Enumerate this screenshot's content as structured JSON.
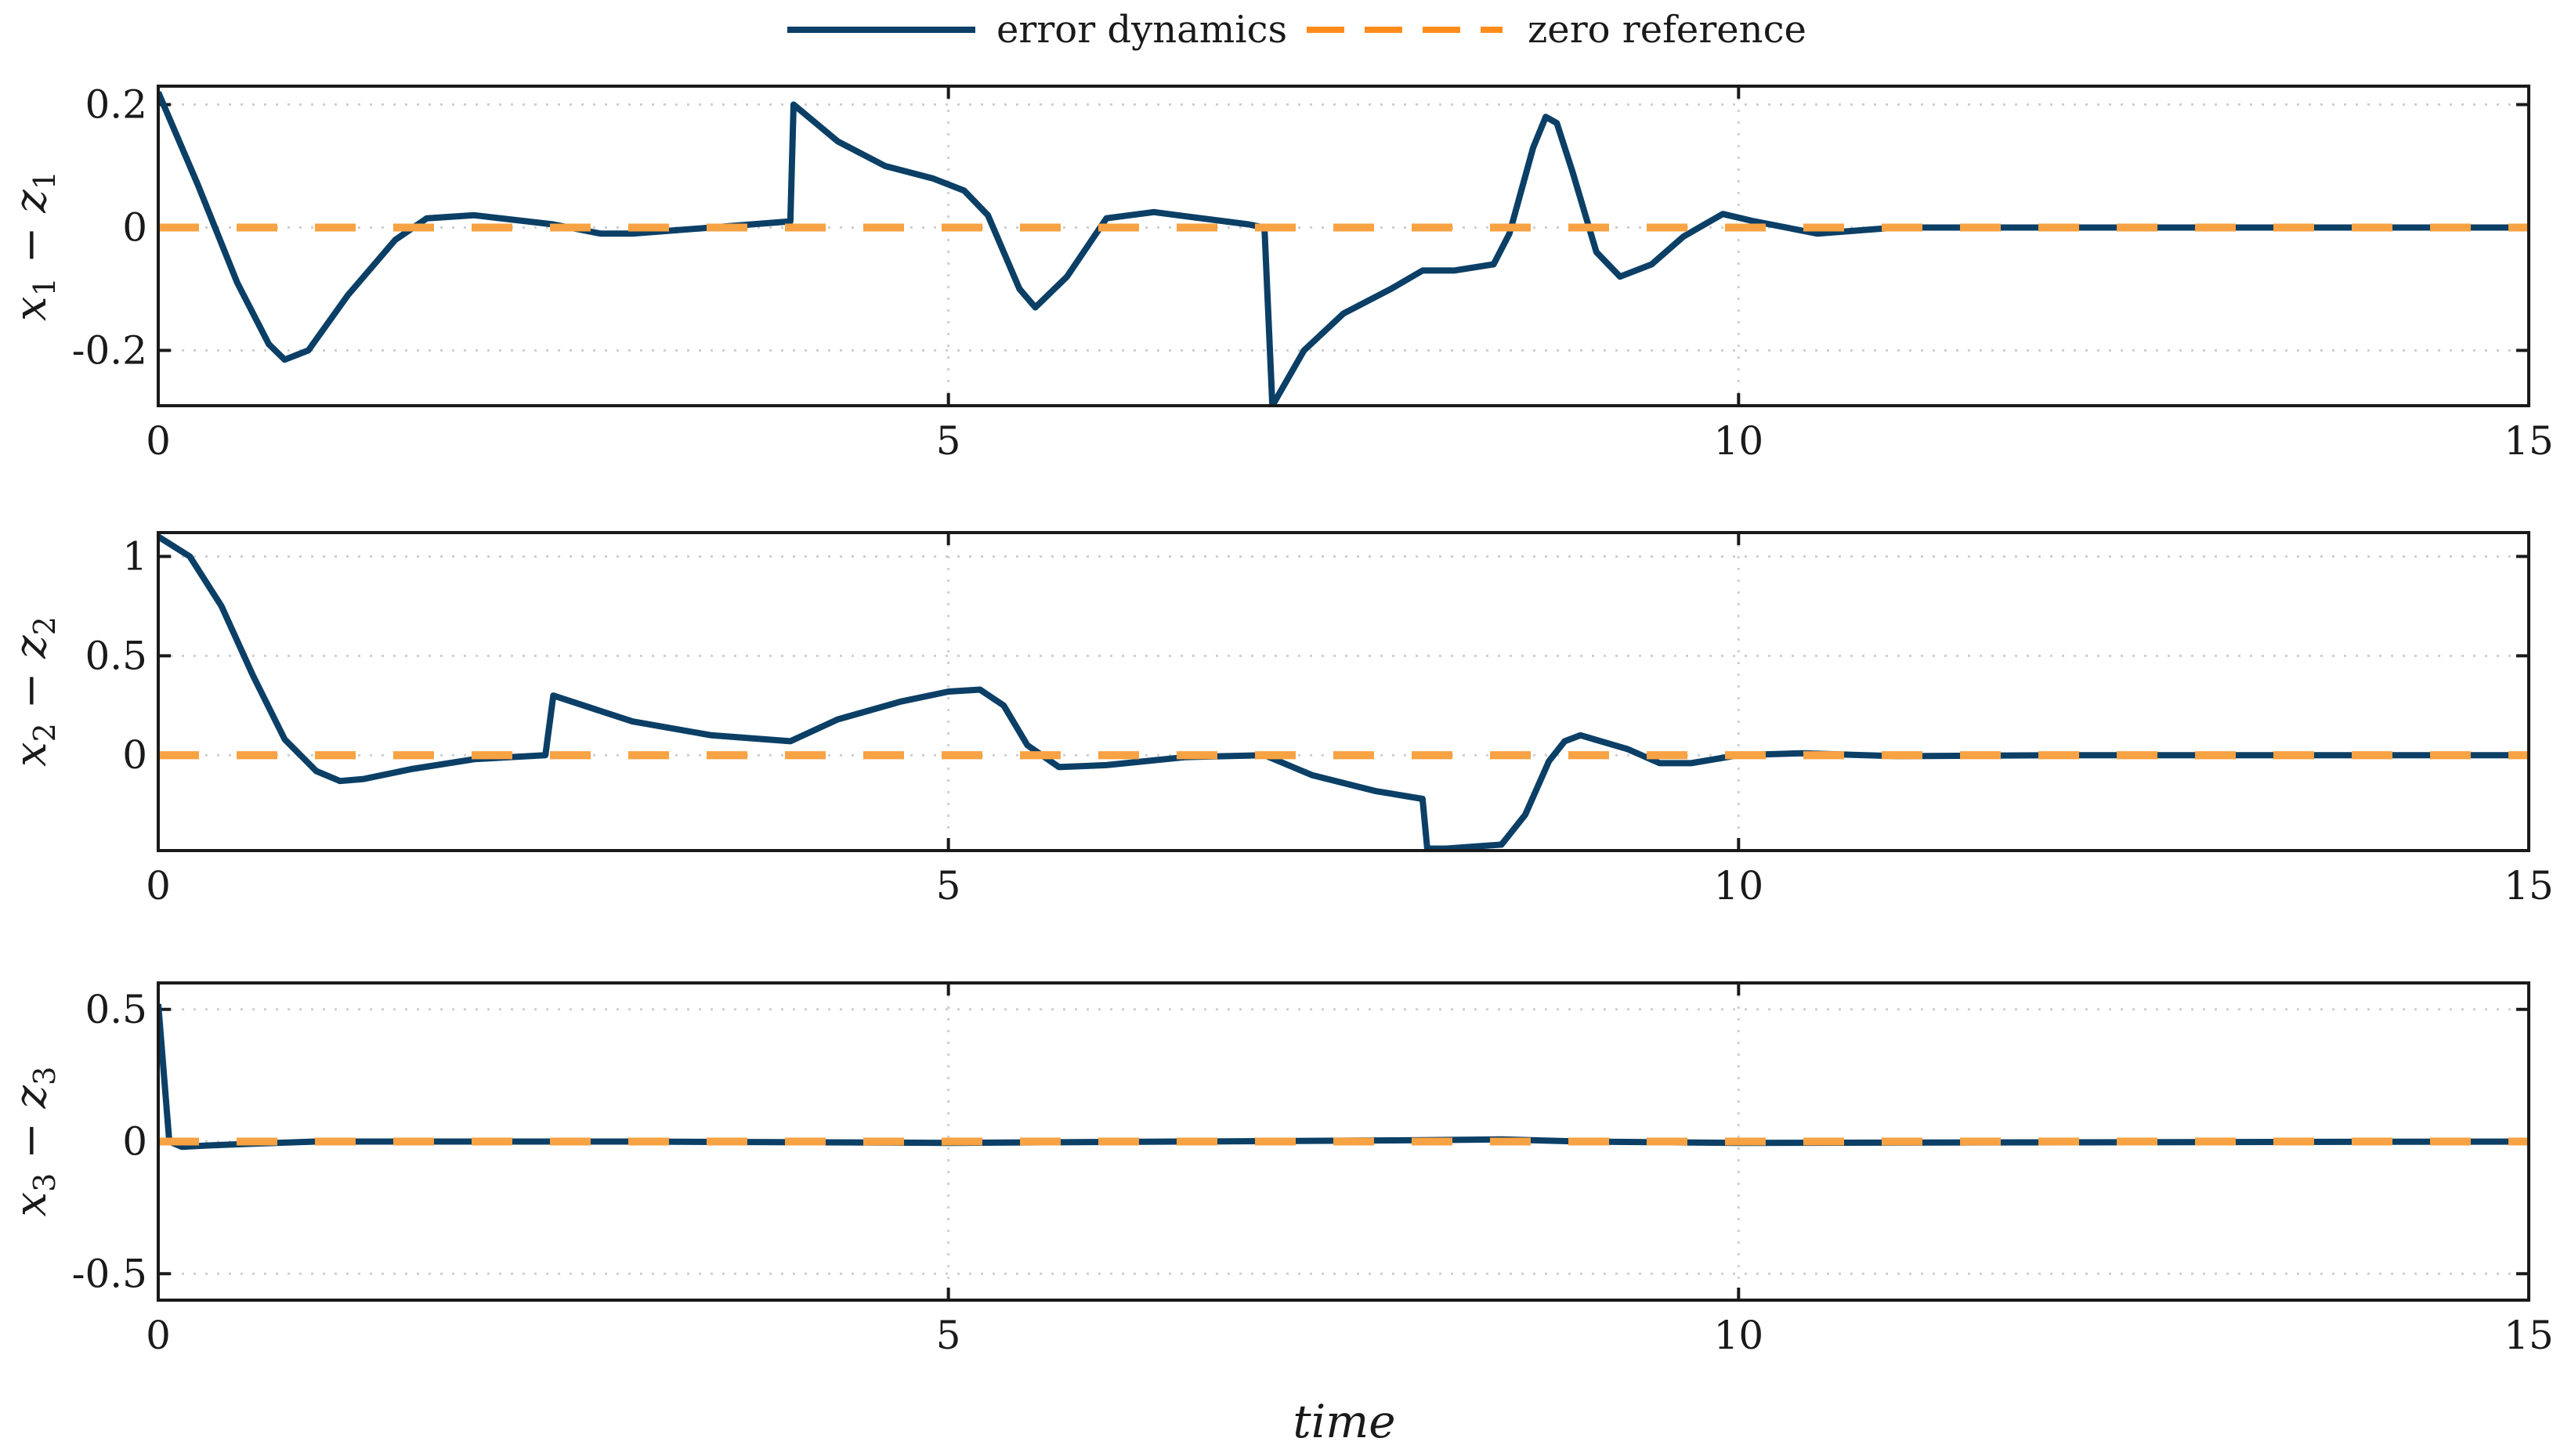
{
  "colors": {
    "error": "#0b3f66",
    "zero": "#f7a243",
    "zero_legend": "#ff8c1a"
  },
  "legend": [
    {
      "label": "error dynamics",
      "style": "solid"
    },
    {
      "label": "zero reference",
      "style": "dashed"
    }
  ],
  "chart_data": [
    {
      "type": "line",
      "ylabel": {
        "var1": "x",
        "sub1": "1",
        "minus": " − ",
        "var2": "z",
        "sub2": "1"
      },
      "xlim": [
        0,
        15
      ],
      "ylim": [
        -0.29,
        0.23
      ],
      "xticks": [
        0,
        5,
        10,
        15
      ],
      "xticklabels": [
        "0",
        "5",
        "10",
        "15"
      ],
      "yticks": [
        -0.2,
        0,
        0.2
      ],
      "yticklabels": [
        "-0.2",
        "0",
        "0.2"
      ],
      "grid": true,
      "series": [
        {
          "name": "error dynamics",
          "x": [
            0,
            0.25,
            0.5,
            0.7,
            0.8,
            0.95,
            1.2,
            1.5,
            1.7,
            2.0,
            2.5,
            2.8,
            3.0,
            3.5,
            4.0,
            4.02,
            4.3,
            4.6,
            4.9,
            5.1,
            5.25,
            5.45,
            5.55,
            5.75,
            6.0,
            6.3,
            6.6,
            6.9,
            7.0,
            7.05,
            7.25,
            7.5,
            7.8,
            8.0,
            8.2,
            8.45,
            8.55,
            8.7,
            8.78,
            8.85,
            8.95,
            9.1,
            9.25,
            9.45,
            9.65,
            9.9,
            10.1,
            10.5,
            11,
            12,
            13,
            14,
            15
          ],
          "y": [
            0.22,
            0.07,
            -0.09,
            -0.19,
            -0.215,
            -0.2,
            -0.11,
            -0.02,
            0.015,
            0.02,
            0.005,
            -0.01,
            -0.01,
            0.0,
            0.01,
            0.2,
            0.14,
            0.1,
            0.08,
            0.06,
            0.02,
            -0.1,
            -0.13,
            -0.08,
            0.015,
            0.025,
            0.015,
            0.005,
            0.0,
            -0.29,
            -0.2,
            -0.14,
            -0.1,
            -0.07,
            -0.07,
            -0.06,
            -0.01,
            0.13,
            0.18,
            0.17,
            0.09,
            -0.04,
            -0.08,
            -0.06,
            -0.015,
            0.022,
            0.01,
            -0.01,
            0.0,
            0.0,
            0.0,
            0.0,
            0.0
          ]
        },
        {
          "name": "zero reference",
          "x": [
            0,
            15
          ],
          "y": [
            0,
            0
          ]
        }
      ]
    },
    {
      "type": "line",
      "ylabel": {
        "var1": "x",
        "sub1": "2",
        "minus": " − ",
        "var2": "z",
        "sub2": "2"
      },
      "xlim": [
        0,
        15
      ],
      "ylim": [
        -0.48,
        1.12
      ],
      "xticks": [
        0,
        5,
        10,
        15
      ],
      "xticklabels": [
        "0",
        "5",
        "10",
        "15"
      ],
      "yticks": [
        0,
        0.5,
        1
      ],
      "yticklabels": [
        "0",
        "0.5",
        "1"
      ],
      "grid": true,
      "series": [
        {
          "name": "error dynamics",
          "x": [
            0,
            0.2,
            0.4,
            0.6,
            0.8,
            1.0,
            1.15,
            1.3,
            1.6,
            2.0,
            2.45,
            2.5,
            3.0,
            3.5,
            4.0,
            4.3,
            4.7,
            5.0,
            5.2,
            5.35,
            5.5,
            5.7,
            6.0,
            6.5,
            7.0,
            7.3,
            7.7,
            8.0,
            8.03,
            8.15,
            8.5,
            8.65,
            8.8,
            8.9,
            9.0,
            9.3,
            9.5,
            9.7,
            10.0,
            10.4,
            11,
            12,
            13,
            14,
            15
          ],
          "y": [
            1.1,
            1.0,
            0.75,
            0.4,
            0.08,
            -0.08,
            -0.13,
            -0.12,
            -0.07,
            -0.02,
            0.0,
            0.3,
            0.17,
            0.1,
            0.07,
            0.18,
            0.27,
            0.32,
            0.33,
            0.25,
            0.05,
            -0.06,
            -0.05,
            -0.01,
            0.0,
            -0.1,
            -0.18,
            -0.22,
            -0.47,
            -0.47,
            -0.45,
            -0.3,
            -0.03,
            0.07,
            0.1,
            0.03,
            -0.04,
            -0.04,
            0.0,
            0.01,
            -0.005,
            0.0,
            0.0,
            0.0,
            0.0
          ]
        },
        {
          "name": "zero reference",
          "x": [
            0,
            15
          ],
          "y": [
            0,
            0
          ]
        }
      ]
    },
    {
      "type": "line",
      "ylabel": {
        "var1": "x",
        "sub1": "3",
        "minus": " − ",
        "var2": "z",
        "sub2": "3"
      },
      "xlim": [
        0,
        15
      ],
      "ylim": [
        -0.6,
        0.6
      ],
      "xticks": [
        0,
        5,
        10,
        15
      ],
      "xticklabels": [
        "0",
        "5",
        "10",
        "15"
      ],
      "yticks": [
        -0.5,
        0,
        0.5
      ],
      "yticklabels": [
        "-0.5",
        "0",
        "0.5"
      ],
      "grid": true,
      "series": [
        {
          "name": "error dynamics",
          "x": [
            0,
            0.07,
            0.15,
            0.3,
            0.6,
            1.0,
            3,
            5,
            8,
            8.5,
            9,
            10,
            15
          ],
          "y": [
            0.52,
            0.0,
            -0.02,
            -0.015,
            -0.008,
            0.0,
            0.0,
            -0.005,
            0.005,
            0.008,
            0.0,
            -0.005,
            0.0
          ]
        },
        {
          "name": "zero reference",
          "x": [
            0,
            15
          ],
          "y": [
            0,
            0
          ]
        }
      ]
    }
  ],
  "xlabel": "time"
}
